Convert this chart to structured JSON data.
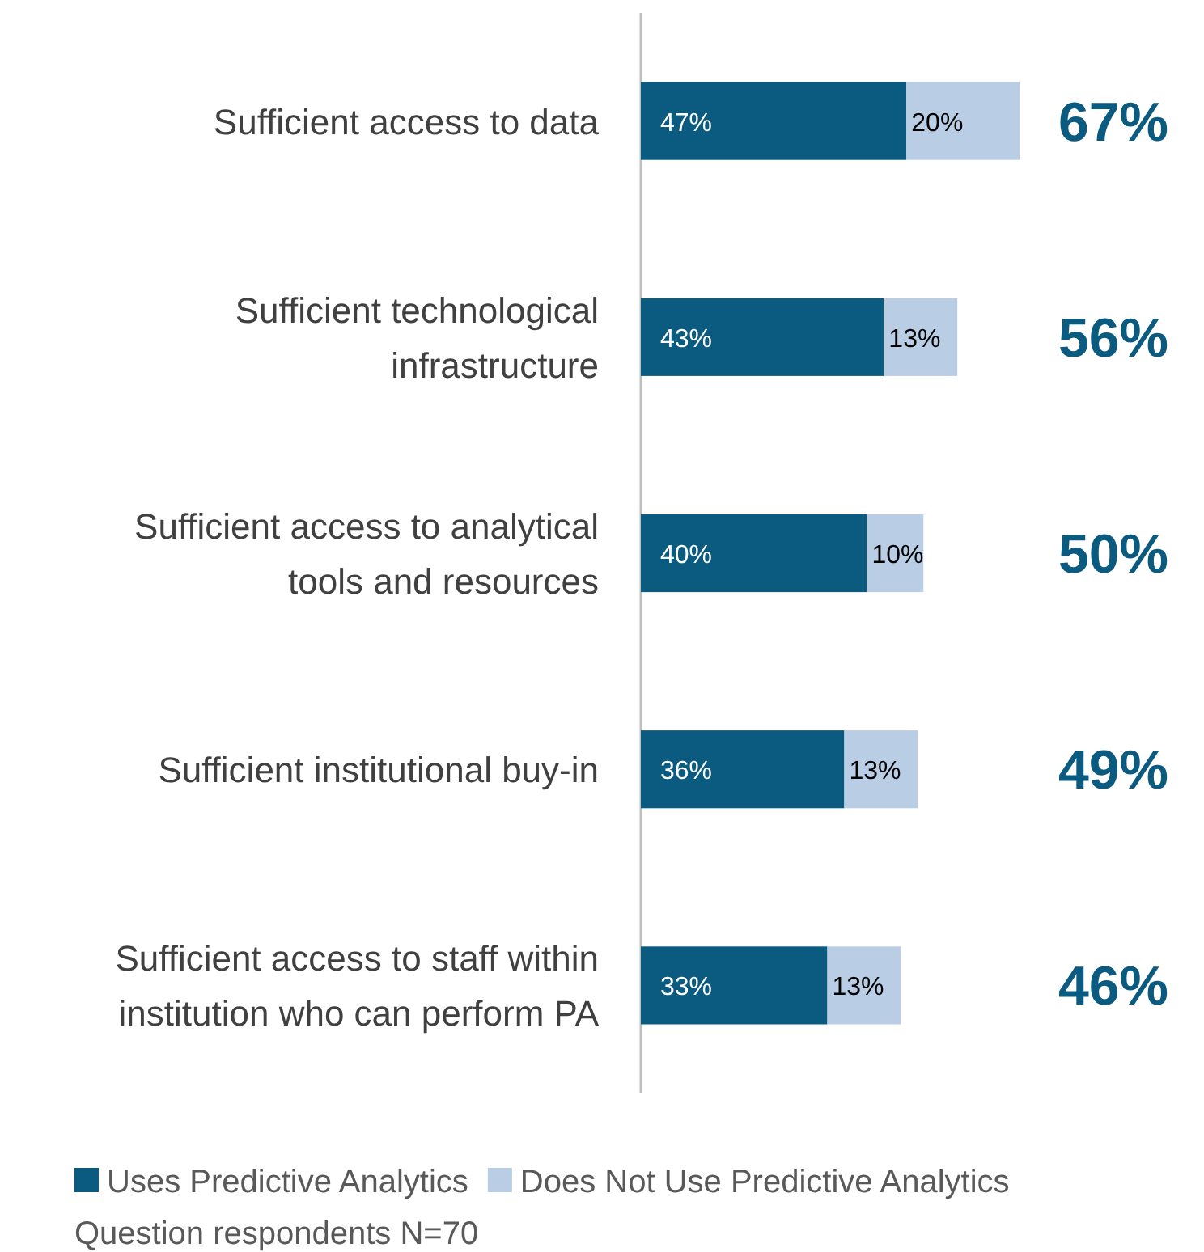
{
  "chart_data": {
    "type": "bar",
    "orientation": "horizontal",
    "stacked": true,
    "categories": [
      "Sufficient access to data",
      "Sufficient technological infrastructure",
      "Sufficient access to analytical tools and resources",
      "Sufficient institutional buy-in",
      "Sufficient access to staff within institution who can perform PA"
    ],
    "series": [
      {
        "name": "Uses Predictive Analytics",
        "color": "#0b5a80",
        "values": [
          47,
          43,
          40,
          36,
          33
        ],
        "value_labels": [
          "47%",
          "43%",
          "40%",
          "36%",
          "33%"
        ]
      },
      {
        "name": "Does Not Use Predictive Analytics",
        "color": "#b9cde5",
        "values": [
          20,
          13,
          10,
          13,
          13
        ],
        "value_labels": [
          "20%",
          "13%",
          "10%",
          "13%",
          "13%"
        ]
      }
    ],
    "tick_labels": "y",
    "totals": [
      "67%",
      "56%",
      "50%",
      "49%",
      "46%"
    ],
    "legend": "bottom",
    "annotations": [
      "Question respondents N=70"
    ]
  }
}
